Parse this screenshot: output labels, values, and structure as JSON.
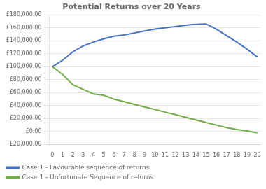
{
  "chart_data": {
    "type": "line",
    "title": "Potential Returns over 20 Years",
    "x": [
      0,
      1,
      2,
      3,
      4,
      5,
      6,
      7,
      8,
      9,
      10,
      11,
      12,
      13,
      14,
      15,
      16,
      17,
      18,
      19,
      20
    ],
    "series": [
      {
        "name": "Case 1 - Favourable sequence of returns",
        "color": "#4472C4",
        "values": [
          100000,
          110000,
          123000,
          132000,
          138000,
          143000,
          147000,
          149000,
          152000,
          155000,
          158000,
          160000,
          162000,
          164000,
          165500,
          166000,
          158000,
          148000,
          138000,
          127000,
          115000
        ]
      },
      {
        "name": "Case 1 - Unfortunate Sequence of returns",
        "color": "#70AD47",
        "values": [
          100000,
          88000,
          72000,
          65000,
          58000,
          56000,
          50000,
          46000,
          42000,
          38000,
          34000,
          30000,
          26000,
          22000,
          18000,
          14000,
          10000,
          6000,
          3000,
          1000,
          -2000
        ]
      }
    ],
    "xlim": [
      -0.3,
      20.3
    ],
    "xticks": [
      0,
      1,
      2,
      3,
      4,
      5,
      6,
      7,
      8,
      9,
      10,
      11,
      12,
      13,
      14,
      15,
      16,
      17,
      18,
      19,
      20
    ],
    "ylim": [
      -20000,
      180000
    ],
    "yticks": [
      {
        "value": -20000,
        "label": "−£20,000.00"
      },
      {
        "value": 0,
        "label": "£0.00"
      },
      {
        "value": 20000,
        "label": "£20,000.00"
      },
      {
        "value": 40000,
        "label": "£40,000.00"
      },
      {
        "value": 60000,
        "label": "£60,000.00"
      },
      {
        "value": 80000,
        "label": "£80,000.00"
      },
      {
        "value": 100000,
        "label": "£100,000.00"
      },
      {
        "value": 120000,
        "label": "£120,000.00"
      },
      {
        "value": 140000,
        "label": "£140,000.00"
      },
      {
        "value": 160000,
        "label": "£160,000.00"
      },
      {
        "value": 180000,
        "label": "£180,000.00"
      }
    ],
    "grid": "y",
    "legend": "lower left"
  }
}
